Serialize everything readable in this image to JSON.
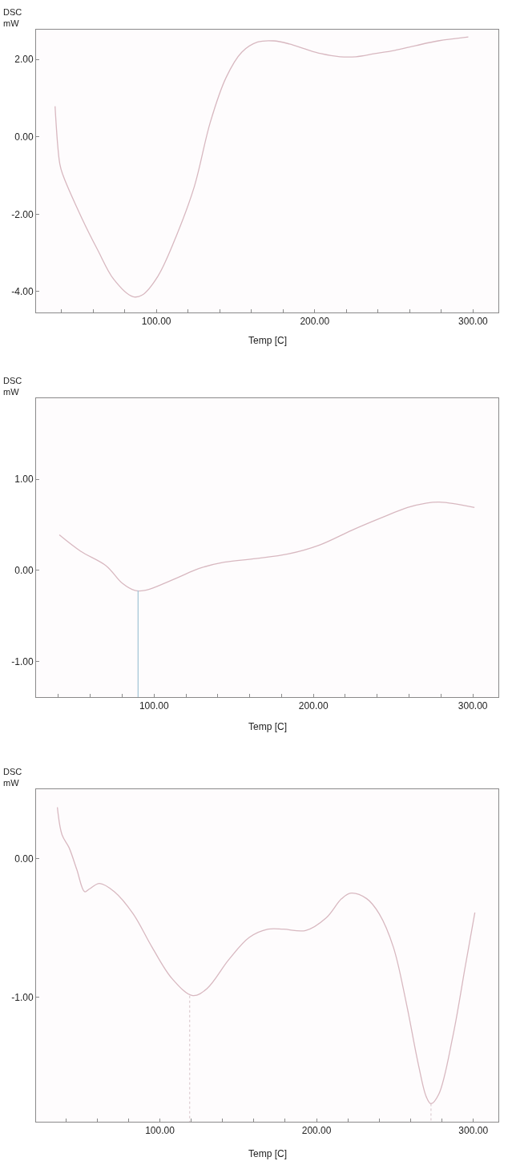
{
  "chart_data": [
    {
      "type": "line",
      "xlabel": "Temp [C]",
      "ylabel": "DSC\nmW",
      "xlim": [
        24,
        316
      ],
      "ylim": [
        -4.54,
        2.77
      ],
      "xticks": [
        {
          "value": 40,
          "label": null
        },
        {
          "value": 60,
          "label": null
        },
        {
          "value": 80,
          "label": null
        },
        {
          "value": 100,
          "label": "100.00"
        },
        {
          "value": 120,
          "label": null
        },
        {
          "value": 140,
          "label": null
        },
        {
          "value": 160,
          "label": null
        },
        {
          "value": 180,
          "label": null
        },
        {
          "value": 200,
          "label": "200.00"
        },
        {
          "value": 220,
          "label": null
        },
        {
          "value": 240,
          "label": null
        },
        {
          "value": 260,
          "label": null
        },
        {
          "value": 280,
          "label": null
        },
        {
          "value": 300,
          "label": "300.00"
        }
      ],
      "yticks": [
        {
          "value": -4,
          "label": "-4.00"
        },
        {
          "value": -2,
          "label": "-2.00"
        },
        {
          "value": 0,
          "label": "0.00"
        },
        {
          "value": 2,
          "label": "2.00"
        }
      ],
      "series": [
        {
          "color": "#d8b8c0",
          "x": [
            36,
            39,
            41,
            53,
            63,
            73,
            85,
            91,
            101,
            113,
            124,
            134,
            144,
            154,
            164,
            174,
            184,
            194,
            204,
            216,
            226,
            238,
            250,
            264,
            278,
            297
          ],
          "values": [
            0.79,
            -0.7,
            -0.99,
            -2.11,
            -2.93,
            -3.68,
            -4.13,
            -4.09,
            -3.6,
            -2.52,
            -1.28,
            0.37,
            1.53,
            2.19,
            2.45,
            2.48,
            2.4,
            2.27,
            2.15,
            2.07,
            2.07,
            2.15,
            2.23,
            2.36,
            2.48,
            2.58
          ]
        }
      ]
    },
    {
      "type": "line",
      "xlabel": "Temp [C]",
      "ylabel": "DSC\nmW",
      "xlim": [
        26,
        316
      ],
      "ylim": [
        -1.39,
        1.89
      ],
      "xticks": [
        {
          "value": 40,
          "label": null
        },
        {
          "value": 60,
          "label": null
        },
        {
          "value": 80,
          "label": null
        },
        {
          "value": 100,
          "label": "100.00"
        },
        {
          "value": 120,
          "label": null
        },
        {
          "value": 140,
          "label": null
        },
        {
          "value": 160,
          "label": null
        },
        {
          "value": 180,
          "label": null
        },
        {
          "value": 200,
          "label": "200.00"
        },
        {
          "value": 220,
          "label": null
        },
        {
          "value": 240,
          "label": null
        },
        {
          "value": 260,
          "label": null
        },
        {
          "value": 280,
          "label": null
        },
        {
          "value": 300,
          "label": "300.00"
        }
      ],
      "yticks": [
        {
          "value": -1,
          "label": "-1.00"
        },
        {
          "value": 0,
          "label": "0.00"
        },
        {
          "value": 1,
          "label": "1.00"
        }
      ],
      "series": [
        {
          "color": "#d8b8c0",
          "x": [
            40.6,
            54,
            70,
            80,
            88,
            94,
            104,
            116,
            128,
            144,
            164,
            184,
            204,
            224,
            243,
            259,
            271,
            279,
            289,
            301
          ],
          "values": [
            0.39,
            0.21,
            0.05,
            -0.14,
            -0.22,
            -0.22,
            -0.16,
            -0.07,
            0.02,
            0.09,
            0.13,
            0.18,
            0.28,
            0.44,
            0.58,
            0.69,
            0.74,
            0.75,
            0.73,
            0.69
          ]
        },
        {
          "color": "#a8c8d8",
          "x": [
            90,
            90
          ],
          "values": [
            -0.22,
            -1.39
          ]
        }
      ]
    },
    {
      "type": "line",
      "xlabel": "Temp [C]",
      "ylabel": "DSC\nmW",
      "xlim": [
        21,
        316
      ],
      "ylim": [
        -1.9,
        0.5
      ],
      "xticks": [
        {
          "value": 40,
          "label": null
        },
        {
          "value": 60,
          "label": null
        },
        {
          "value": 80,
          "label": null
        },
        {
          "value": 100,
          "label": "100.00"
        },
        {
          "value": 120,
          "label": null
        },
        {
          "value": 140,
          "label": null
        },
        {
          "value": 160,
          "label": null
        },
        {
          "value": 180,
          "label": null
        },
        {
          "value": 200,
          "label": "200.00"
        },
        {
          "value": 220,
          "label": null
        },
        {
          "value": 240,
          "label": null
        },
        {
          "value": 260,
          "label": null
        },
        {
          "value": 280,
          "label": null
        },
        {
          "value": 300,
          "label": "300.00"
        }
      ],
      "yticks": [
        {
          "value": -1,
          "label": "-1.00"
        },
        {
          "value": 0,
          "label": "0.00"
        }
      ],
      "series": [
        {
          "color": "#d8b8c0",
          "x": [
            34.6,
            37.6,
            42,
            47,
            52,
            55,
            61.5,
            71,
            83,
            95,
            108,
            121,
            130,
            144,
            157,
            169,
            179,
            193,
            206,
            216,
            222,
            232,
            240,
            249,
            257,
            265,
            270,
            273,
            278,
            287,
            295,
            301
          ],
          "values": [
            0.37,
            0.17,
            0.08,
            -0.08,
            -0.24,
            -0.22,
            -0.18,
            -0.24,
            -0.4,
            -0.64,
            -0.87,
            -0.99,
            -0.94,
            -0.73,
            -0.57,
            -0.51,
            -0.51,
            -0.52,
            -0.43,
            -0.29,
            -0.25,
            -0.29,
            -0.4,
            -0.64,
            -1.03,
            -1.49,
            -1.72,
            -1.77,
            -1.7,
            -1.28,
            -0.77,
            -0.39
          ]
        },
        {
          "color": "#e0d0d4",
          "line_style": "dotted",
          "x": [
            119,
            119
          ],
          "values": [
            -0.99,
            -1.9
          ]
        },
        {
          "color": "#e0d0d4",
          "line_style": "dotted",
          "x": [
            273,
            273
          ],
          "values": [
            -1.77,
            -1.9
          ]
        }
      ]
    }
  ]
}
